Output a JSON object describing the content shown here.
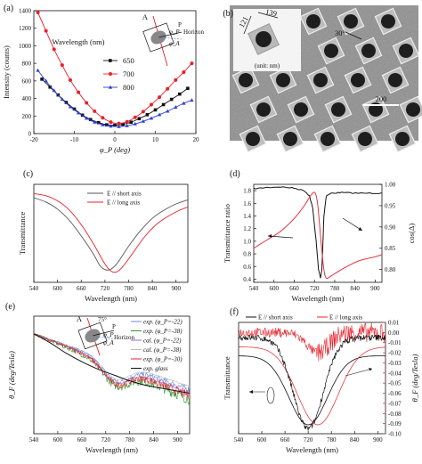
{
  "colors": {
    "black": "#111111",
    "red": "#e8202a",
    "blue": "#2f3fd6",
    "green": "#2a9a2a",
    "violet": "#9966dd",
    "gray": "#888888"
  },
  "panel_a": {
    "letter": "(a)",
    "legend_title": "Wavelength (nm)",
    "ylabel": "Intensity (counts)",
    "xlabel": "φ_P (deg)",
    "x_ticks": [
      "-20",
      "-10",
      "0",
      "10",
      "20"
    ],
    "y_ticks": [
      "0",
      "200",
      "400",
      "600",
      "800",
      "1000",
      "1200",
      "1400"
    ],
    "inset": {
      "A": "A",
      "P": "P",
      "phiP": "φ_P",
      "phiA": "φ_A",
      "horizon": "Horizon"
    }
  },
  "panel_b": {
    "letter": "(b)",
    "dim_left": "121",
    "dim_top": "139",
    "unit_text": "(unit: nm)",
    "angle": "30°",
    "scale": "200"
  },
  "panel_c": {
    "letter": "(c)",
    "ylabel": "Transmittance",
    "xlabel": "Wavelength (nm)",
    "x_ticks": [
      "540",
      "600",
      "660",
      "720",
      "780",
      "840",
      "900"
    ]
  },
  "panel_d": {
    "letter": "(d)",
    "ylabel": "Transmittance ratio",
    "y2label": "cos(Δ)",
    "xlabel": "Wavelength (nm)",
    "x_ticks": [
      "540",
      "600",
      "660",
      "720",
      "780",
      "840",
      "900"
    ],
    "y_ticks": [
      "0.4",
      "0.6",
      "0.8",
      "1.0",
      "1.2",
      "1.4",
      "1.6",
      "1.8"
    ],
    "y2_ticks": [
      "0.80",
      "0.85",
      "0.90",
      "0.95",
      "1.00"
    ]
  },
  "panel_e": {
    "letter": "(e)",
    "ylabel": "θ_F (deg/Tesla)",
    "xlabel": "Wavelength (nm)",
    "x_ticks": [
      "540",
      "600",
      "660",
      "720",
      "780",
      "840",
      "900"
    ],
    "inset": {
      "A": "A",
      "P": "P",
      "angle": "75°",
      "phiP": "φ_P",
      "phiA": "φ_A",
      "horizon": "Horizon"
    }
  },
  "panel_f": {
    "letter": "(f)",
    "ylabel": "Transmittance",
    "y2label": "θ_F (deg/Tesla)",
    "xlabel": "Wavelength (nm)",
    "x_ticks": [
      "540",
      "600",
      "660",
      "720",
      "780",
      "840",
      "900"
    ],
    "y2_ticks": [
      "0.01",
      "0.00",
      "-0.01",
      "-0.02",
      "-0.03",
      "-0.04",
      "-0.05",
      "-0.06",
      "-0.07",
      "-0.08",
      "-0.09",
      "-0.10"
    ]
  },
  "chart_data": [
    {
      "type": "line",
      "panel": "a",
      "xlabel": "φ_P (deg)",
      "ylabel": "Intensity (counts)",
      "xlim": [
        -20,
        20
      ],
      "ylim": [
        0,
        1400
      ],
      "legend_title": "Wavelength (nm)",
      "series": [
        {
          "name": "650",
          "color": "#111111",
          "marker": "square",
          "x": [
            -18,
            -16,
            -14,
            -12,
            -10,
            -8,
            -6,
            -4,
            -2,
            0,
            2,
            4,
            6,
            8,
            10,
            12,
            14,
            16,
            18
          ],
          "y": [
            620,
            530,
            440,
            355,
            280,
            210,
            160,
            125,
            100,
            95,
            105,
            130,
            170,
            215,
            270,
            330,
            390,
            450,
            515
          ]
        },
        {
          "name": "700",
          "color": "#e8202a",
          "marker": "circle",
          "x": [
            -19,
            -17,
            -15,
            -13,
            -11,
            -9,
            -7,
            -5,
            -3,
            -1,
            1,
            3,
            5,
            7,
            9,
            11,
            13,
            15,
            17,
            19
          ],
          "y": [
            1380,
            1170,
            960,
            780,
            610,
            470,
            350,
            255,
            180,
            130,
            115,
            135,
            185,
            250,
            330,
            415,
            510,
            610,
            700,
            800
          ]
        },
        {
          "name": "800",
          "color": "#2f3fd6",
          "marker": "triangle",
          "x": [
            -19,
            -17,
            -15,
            -13,
            -11,
            -9,
            -7,
            -5,
            -3,
            -1,
            1,
            3,
            5,
            7,
            9,
            11,
            13,
            15,
            17,
            19
          ],
          "y": [
            720,
            600,
            490,
            390,
            305,
            235,
            175,
            130,
            100,
            85,
            80,
            90,
            110,
            140,
            175,
            215,
            255,
            300,
            345,
            380
          ]
        }
      ]
    },
    {
      "type": "line",
      "panel": "c",
      "xlabel": "Wavelength (nm)",
      "ylabel": "Transmittance",
      "xlim": [
        540,
        930
      ],
      "series": [
        {
          "name": "E // short axis",
          "color": "#555555",
          "x": [
            540,
            570,
            600,
            630,
            660,
            690,
            710,
            730,
            750,
            780,
            810,
            840,
            870,
            900,
            930
          ],
          "y": [
            0.82,
            0.78,
            0.71,
            0.6,
            0.45,
            0.28,
            0.15,
            0.12,
            0.18,
            0.35,
            0.5,
            0.62,
            0.7,
            0.76,
            0.8
          ]
        },
        {
          "name": "E // long axis",
          "color": "#e8202a",
          "x": [
            540,
            570,
            600,
            630,
            660,
            690,
            720,
            740,
            760,
            790,
            820,
            850,
            880,
            910,
            930
          ],
          "y": [
            0.86,
            0.84,
            0.79,
            0.7,
            0.56,
            0.38,
            0.18,
            0.1,
            0.13,
            0.28,
            0.44,
            0.56,
            0.64,
            0.7,
            0.73
          ]
        }
      ]
    },
    {
      "type": "line",
      "panel": "d",
      "xlabel": "Wavelength (nm)",
      "ylabel": "Transmittance ratio",
      "y2label": "cos(Δ)",
      "xlim": [
        540,
        920
      ],
      "ylim": [
        0.35,
        1.9
      ],
      "y2lim": [
        0.77,
        1.0
      ],
      "series": [
        {
          "name": "Transmittance ratio",
          "color": "#111111",
          "x": [
            540,
            580,
            620,
            660,
            690,
            705,
            715,
            725,
            732,
            738,
            742,
            748,
            755,
            770,
            800,
            850,
            900,
            920
          ],
          "y": [
            1.83,
            1.85,
            1.86,
            1.84,
            1.8,
            1.72,
            1.52,
            1.0,
            0.55,
            0.42,
            0.55,
            1.4,
            1.72,
            1.76,
            1.77,
            1.76,
            1.76,
            1.76
          ]
        },
        {
          "name": "cos(Δ)",
          "axis": "right",
          "color": "#e8202a",
          "x": [
            540,
            580,
            620,
            660,
            690,
            710,
            722,
            730,
            740,
            748,
            755,
            770,
            800,
            850,
            900,
            920
          ],
          "y": [
            0.85,
            0.87,
            0.89,
            0.92,
            0.95,
            0.975,
            0.98,
            0.95,
            0.86,
            0.8,
            0.78,
            0.785,
            0.8,
            0.82,
            0.83,
            0.835
          ]
        }
      ]
    },
    {
      "type": "line",
      "panel": "e",
      "xlabel": "Wavelength (nm)",
      "ylabel": "θ_F (deg/Tesla)",
      "xlim": [
        540,
        930
      ],
      "series": [
        {
          "name": "exp. (φ_P=-22)",
          "color": "#6a8ad8"
        },
        {
          "name": "exp. (φ_P=-38)",
          "color": "#2a9a2a"
        },
        {
          "name": "cal. (φ_P=-22)",
          "color": "#9966dd"
        },
        {
          "name": "cal. (φ_P=-38)",
          "color": "#bbbbbb"
        },
        {
          "name": "exp. (φ_P=-30)",
          "color": "#e8202a"
        },
        {
          "name": "exp. glass",
          "color": "#111111",
          "x": [
            540,
            580,
            620,
            660,
            700,
            740,
            780,
            820,
            860,
            900,
            930
          ],
          "y": [
            0.19,
            0.16,
            0.125,
            0.095,
            0.07,
            0.05,
            0.03,
            0.015,
            0.005,
            -0.005,
            -0.012
          ]
        }
      ]
    },
    {
      "type": "line",
      "panel": "f",
      "xlabel": "Wavelength (nm)",
      "ylabel": "Transmittance",
      "y2label": "θ_F (deg/Tesla)",
      "xlim": [
        540,
        920
      ],
      "y2lim": [
        -0.1,
        0.01
      ],
      "series": [
        {
          "name": "E // short axis",
          "color": "#111111"
        },
        {
          "name": "E // long axis",
          "color": "#e8202a"
        }
      ]
    }
  ]
}
